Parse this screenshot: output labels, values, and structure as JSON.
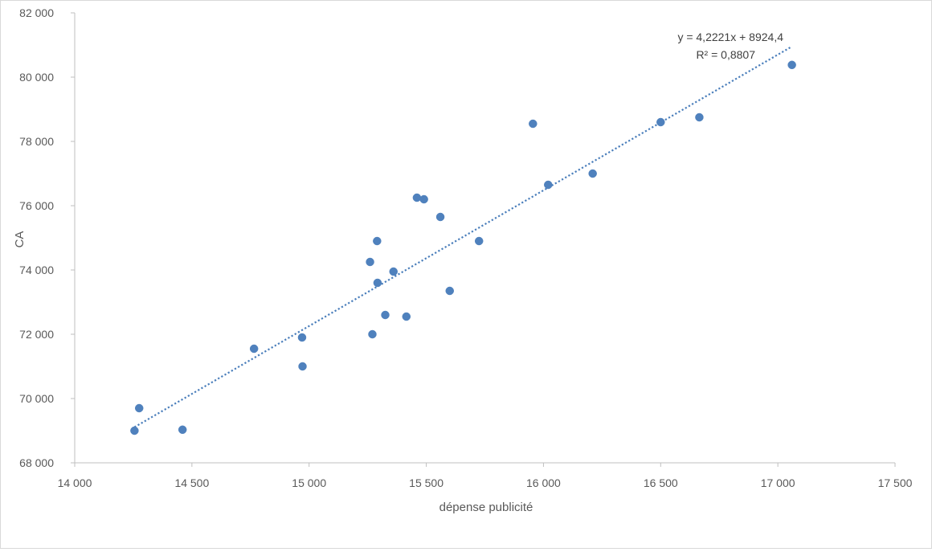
{
  "chart_data": {
    "type": "scatter",
    "title": "",
    "xlabel": "dépense publicité",
    "ylabel": "CA",
    "xlim": [
      14000,
      17500
    ],
    "ylim": [
      68000,
      82000
    ],
    "x_ticks": [
      14000,
      14500,
      15000,
      15500,
      16000,
      16500,
      17000,
      17500
    ],
    "y_ticks": [
      68000,
      70000,
      72000,
      74000,
      76000,
      78000,
      80000,
      82000
    ],
    "x_tick_labels": [
      "14 000",
      "14 500",
      "15 000",
      "15 500",
      "16 000",
      "16 500",
      "17 000",
      "17 500"
    ],
    "y_tick_labels": [
      "68 000",
      "70 000",
      "72 000",
      "74 000",
      "76 000",
      "78 000",
      "80 000",
      "82 000"
    ],
    "grid": false,
    "legend": "none",
    "marker_color": "#4f81bd",
    "trendline_color": "#4a7ebb",
    "series": [
      {
        "points": [
          [
            14255,
            69000
          ],
          [
            14275,
            69700
          ],
          [
            14460,
            69030
          ],
          [
            14765,
            71550
          ],
          [
            14970,
            71900
          ],
          [
            14972,
            71000
          ],
          [
            15260,
            74250
          ],
          [
            15270,
            72000
          ],
          [
            15290,
            74900
          ],
          [
            15292,
            73600
          ],
          [
            15325,
            72600
          ],
          [
            15360,
            73950
          ],
          [
            15415,
            72550
          ],
          [
            15460,
            76250
          ],
          [
            15490,
            76200
          ],
          [
            15560,
            75650
          ],
          [
            15600,
            73350
          ],
          [
            15725,
            74900
          ],
          [
            15955,
            78550
          ],
          [
            16020,
            76650
          ],
          [
            16210,
            77000
          ],
          [
            16500,
            78600
          ],
          [
            16665,
            78750
          ],
          [
            17060,
            80380
          ]
        ]
      }
    ],
    "trendline": {
      "type": "linear",
      "slope": 4.2221,
      "intercept": 8924.4,
      "x_range": [
        14255,
        17060
      ],
      "equation_label": "y = 4,2221x + 8924,4",
      "r2_label": "R² = 0,8807"
    }
  }
}
